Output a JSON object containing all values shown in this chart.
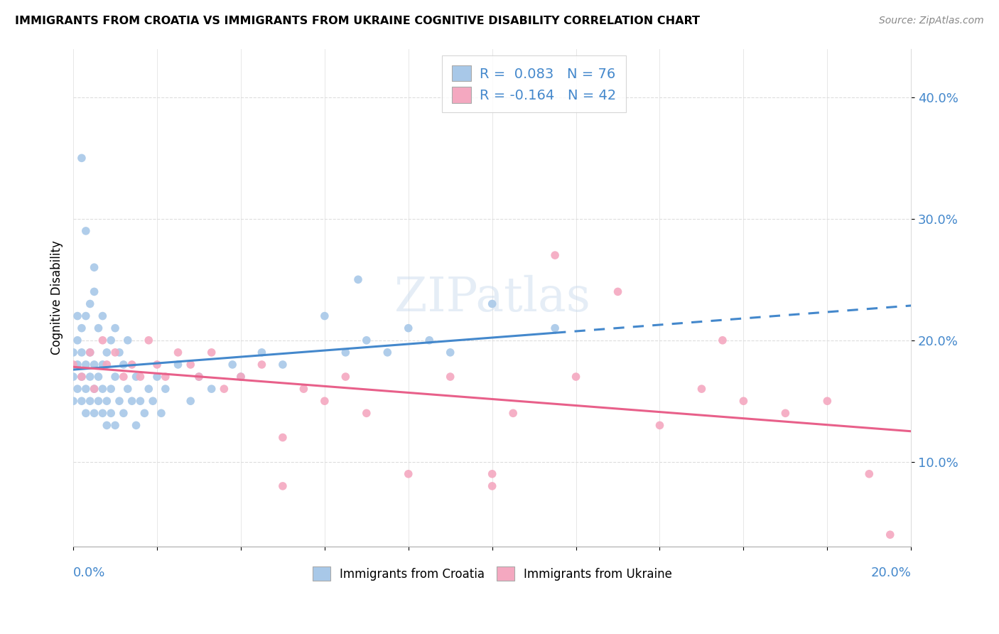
{
  "title": "IMMIGRANTS FROM CROATIA VS IMMIGRANTS FROM UKRAINE COGNITIVE DISABILITY CORRELATION CHART",
  "source": "Source: ZipAtlas.com",
  "ylabel": "Cognitive Disability",
  "legend_R_label1": "R =  0.083   N = 76",
  "legend_R_label2": "R = -0.164   N = 42",
  "legend_label1": "Immigrants from Croatia",
  "legend_label2": "Immigrants from Ukraine",
  "croatia_color": "#a8c8e8",
  "ukraine_color": "#f4a8c0",
  "croatia_line_color": "#4488cc",
  "ukraine_line_color": "#e8608a",
  "xlim": [
    0.0,
    0.2
  ],
  "ylim": [
    0.03,
    0.44
  ],
  "ytick_vals": [
    0.1,
    0.2,
    0.3,
    0.4
  ],
  "background_color": "#ffffff",
  "grid_color": "#dddddd",
  "watermark": "ZIPatlas",
  "croatia_x": [
    0.0,
    0.0,
    0.0,
    0.001,
    0.001,
    0.001,
    0.001,
    0.002,
    0.002,
    0.002,
    0.002,
    0.003,
    0.003,
    0.003,
    0.003,
    0.004,
    0.004,
    0.004,
    0.004,
    0.005,
    0.005,
    0.005,
    0.005,
    0.006,
    0.006,
    0.006,
    0.007,
    0.007,
    0.007,
    0.007,
    0.008,
    0.008,
    0.008,
    0.009,
    0.009,
    0.009,
    0.01,
    0.01,
    0.01,
    0.011,
    0.011,
    0.012,
    0.012,
    0.013,
    0.013,
    0.014,
    0.015,
    0.015,
    0.016,
    0.017,
    0.018,
    0.019,
    0.02,
    0.021,
    0.022,
    0.025,
    0.028,
    0.03,
    0.033,
    0.038,
    0.04,
    0.045,
    0.05,
    0.06,
    0.065,
    0.068,
    0.07,
    0.075,
    0.08,
    0.085,
    0.09,
    0.1,
    0.115,
    0.002,
    0.003,
    0.005
  ],
  "croatia_y": [
    0.17,
    0.15,
    0.19,
    0.16,
    0.18,
    0.2,
    0.22,
    0.15,
    0.17,
    0.19,
    0.21,
    0.14,
    0.16,
    0.18,
    0.22,
    0.15,
    0.17,
    0.19,
    0.23,
    0.14,
    0.16,
    0.18,
    0.24,
    0.15,
    0.17,
    0.21,
    0.14,
    0.16,
    0.18,
    0.22,
    0.13,
    0.15,
    0.19,
    0.14,
    0.16,
    0.2,
    0.13,
    0.17,
    0.21,
    0.15,
    0.19,
    0.14,
    0.18,
    0.16,
    0.2,
    0.15,
    0.13,
    0.17,
    0.15,
    0.14,
    0.16,
    0.15,
    0.17,
    0.14,
    0.16,
    0.18,
    0.15,
    0.17,
    0.16,
    0.18,
    0.17,
    0.19,
    0.18,
    0.22,
    0.19,
    0.25,
    0.2,
    0.19,
    0.21,
    0.2,
    0.19,
    0.23,
    0.21,
    0.35,
    0.29,
    0.26
  ],
  "ukraine_x": [
    0.0,
    0.002,
    0.004,
    0.005,
    0.007,
    0.008,
    0.01,
    0.012,
    0.014,
    0.016,
    0.018,
    0.02,
    0.022,
    0.025,
    0.028,
    0.03,
    0.033,
    0.036,
    0.04,
    0.045,
    0.05,
    0.055,
    0.06,
    0.065,
    0.07,
    0.08,
    0.09,
    0.1,
    0.105,
    0.115,
    0.12,
    0.13,
    0.14,
    0.15,
    0.155,
    0.16,
    0.17,
    0.18,
    0.19,
    0.195,
    0.05,
    0.1
  ],
  "ukraine_y": [
    0.18,
    0.17,
    0.19,
    0.16,
    0.2,
    0.18,
    0.19,
    0.17,
    0.18,
    0.17,
    0.2,
    0.18,
    0.17,
    0.19,
    0.18,
    0.17,
    0.19,
    0.16,
    0.17,
    0.18,
    0.08,
    0.16,
    0.15,
    0.17,
    0.14,
    0.09,
    0.17,
    0.08,
    0.14,
    0.27,
    0.17,
    0.24,
    0.13,
    0.16,
    0.2,
    0.15,
    0.14,
    0.15,
    0.09,
    0.04,
    0.12,
    0.09
  ]
}
